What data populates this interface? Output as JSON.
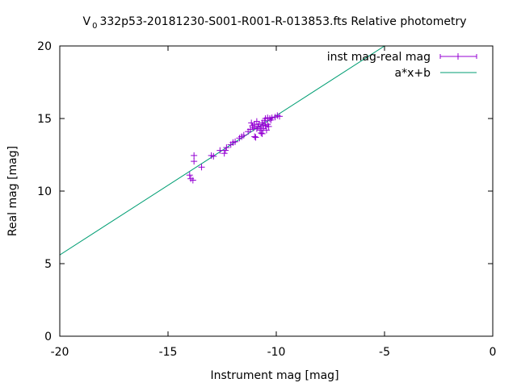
{
  "chart_data": {
    "type": "scatter",
    "title": "V 0 332p53-20181230-S001-R001-R-013853.fts Relative photometry",
    "title_parts": {
      "prefix": "V",
      "subscript": "0",
      "rest": "332p53-20181230-S001-R001-R-013853.fts Relative photometry"
    },
    "xlabel": "Instrument mag [mag]",
    "ylabel": "Real mag [mag]",
    "xlim": [
      -20,
      0
    ],
    "ylim": [
      0,
      20
    ],
    "xticks": [
      -20,
      -15,
      -10,
      -5,
      0
    ],
    "yticks": [
      0,
      5,
      10,
      15,
      20
    ],
    "grid": false,
    "legend_position": "top-right",
    "series": [
      {
        "name": "inst mag-real mag",
        "kind": "points-with-errorbars",
        "color": "#9400d3",
        "points": [
          [
            -14.0,
            11.1
          ],
          [
            -13.95,
            10.85
          ],
          [
            -13.85,
            10.75
          ],
          [
            -13.8,
            12.45
          ],
          [
            -13.8,
            12.05
          ],
          [
            -13.45,
            11.65
          ],
          [
            -13.0,
            12.45
          ],
          [
            -12.9,
            12.4
          ],
          [
            -12.6,
            12.8
          ],
          [
            -12.4,
            12.6
          ],
          [
            -12.35,
            12.8
          ],
          [
            -12.3,
            13.0
          ],
          [
            -12.1,
            13.2
          ],
          [
            -12.0,
            13.35
          ],
          [
            -11.9,
            13.4
          ],
          [
            -11.7,
            13.65
          ],
          [
            -11.6,
            13.75
          ],
          [
            -11.5,
            13.85
          ],
          [
            -11.3,
            14.1
          ],
          [
            -11.2,
            14.25
          ],
          [
            -11.15,
            14.7
          ],
          [
            -11.1,
            14.5
          ],
          [
            -11.05,
            14.35
          ],
          [
            -11.0,
            14.6
          ],
          [
            -10.95,
            13.7
          ],
          [
            -10.9,
            14.8
          ],
          [
            -10.9,
            14.3
          ],
          [
            -10.85,
            14.45
          ],
          [
            -10.8,
            14.6
          ],
          [
            -10.75,
            14.2
          ],
          [
            -10.7,
            14.0
          ],
          [
            -10.7,
            14.4
          ],
          [
            -10.65,
            14.7
          ],
          [
            -10.6,
            14.55
          ],
          [
            -10.6,
            14.3
          ],
          [
            -10.55,
            14.85
          ],
          [
            -10.5,
            15.0
          ],
          [
            -10.5,
            14.5
          ],
          [
            -10.45,
            14.2
          ],
          [
            -10.4,
            14.6
          ],
          [
            -10.4,
            15.05
          ],
          [
            -10.3,
            15.0
          ],
          [
            -10.25,
            14.9
          ],
          [
            -10.2,
            15.05
          ],
          [
            -10.05,
            15.1
          ],
          [
            -9.95,
            15.2
          ],
          [
            -9.85,
            15.15
          ],
          [
            -10.65,
            13.95
          ],
          [
            -11.0,
            13.75
          ],
          [
            -10.35,
            14.45
          ]
        ]
      },
      {
        "name": "a*x+b",
        "kind": "line",
        "color": "#009e73",
        "slope": 0.96,
        "intercept": 24.8
      }
    ]
  }
}
